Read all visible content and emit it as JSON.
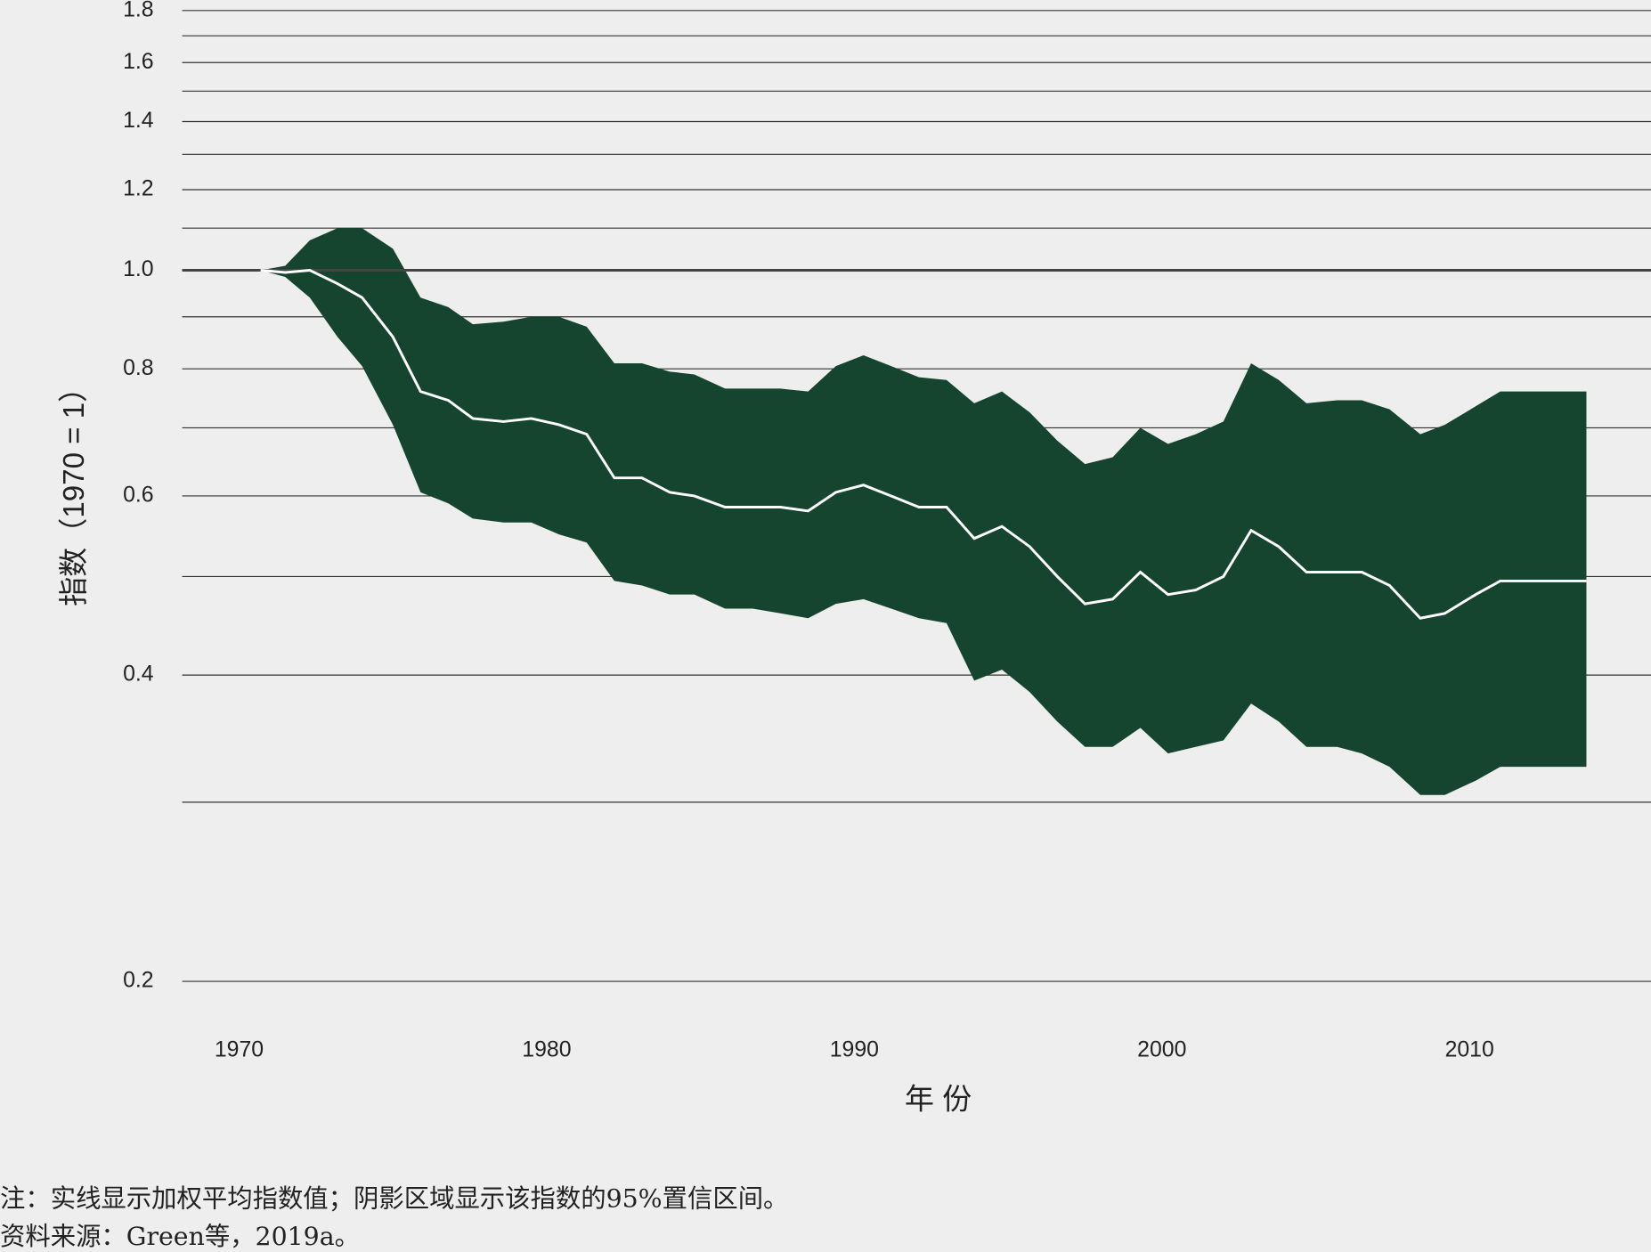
{
  "chart_data": {
    "type": "band-line",
    "y_label": "指数（1970 = 1）",
    "x_label": "年 份",
    "notes": [
      "注：实线显示加权平均指数值；阴影区域显示该指数的95%置信区间。",
      "资料来源：Green等，2019a。"
    ],
    "log_y": true,
    "ylim": [
      0.2,
      1.8
    ],
    "yticks": [
      0.2,
      0.4,
      0.6,
      0.8,
      {
        "value": 1,
        "label": "1.0"
      },
      1.2,
      1.4,
      1.6,
      1.8
    ],
    "minor_gridlines": [
      0.3,
      0.5,
      0.7,
      0.9,
      1.1,
      1.3,
      1.5,
      1.7
    ],
    "baseline": 1,
    "xlim": [
      1968.15,
      2015.9
    ],
    "xticks": [
      1970,
      1980,
      1990,
      2000,
      2010
    ],
    "x": [
      1970.7,
      1971.5,
      1972.3,
      1973.2,
      1974.0,
      1975.0,
      1975.9,
      1976.8,
      1977.6,
      1978.6,
      1979.5,
      1980.4,
      1981.3,
      1982.2,
      1983.1,
      1984.0,
      1984.8,
      1985.8,
      1986.7,
      1987.6,
      1988.5,
      1989.4,
      1990.3,
      1991.2,
      1992.1,
      1993.0,
      1993.9,
      1994.8,
      1995.7,
      1996.6,
      1997.5,
      1998.4,
      1999.3,
      2000.2,
      2001.1,
      2002.0,
      2002.9,
      2003.8,
      2004.7,
      2005.7,
      2006.5,
      2007.4,
      2008.4,
      2009.2,
      2010.2,
      2011.0,
      2013.8
    ],
    "values": [
      1.0,
      0.995,
      1.0,
      0.97,
      0.94,
      0.86,
      0.76,
      0.745,
      0.715,
      0.71,
      0.715,
      0.705,
      0.69,
      0.625,
      0.625,
      0.605,
      0.6,
      0.585,
      0.585,
      0.585,
      0.58,
      0.605,
      0.615,
      0.6,
      0.585,
      0.585,
      0.545,
      0.56,
      0.535,
      0.5,
      0.47,
      0.475,
      0.505,
      0.48,
      0.485,
      0.5,
      0.555,
      0.535,
      0.505,
      0.505,
      0.505,
      0.49,
      0.455,
      0.46,
      0.48,
      0.495,
      0.495
    ],
    "line_color": "#ffffff",
    "upper": [
      1.0,
      1.01,
      1.07,
      1.1,
      1.1,
      1.05,
      0.94,
      0.92,
      0.885,
      0.89,
      0.9,
      0.9,
      0.88,
      0.81,
      0.81,
      0.795,
      0.79,
      0.765,
      0.765,
      0.765,
      0.76,
      0.805,
      0.825,
      0.805,
      0.785,
      0.78,
      0.74,
      0.76,
      0.725,
      0.68,
      0.645,
      0.655,
      0.7,
      0.675,
      0.69,
      0.71,
      0.81,
      0.78,
      0.74,
      0.745,
      0.745,
      0.73,
      0.69,
      0.705,
      0.735,
      0.76,
      0.76
    ],
    "lower": [
      1.0,
      0.985,
      0.94,
      0.86,
      0.805,
      0.705,
      0.605,
      0.59,
      0.57,
      0.565,
      0.565,
      0.55,
      0.54,
      0.495,
      0.49,
      0.48,
      0.48,
      0.465,
      0.465,
      0.46,
      0.455,
      0.47,
      0.475,
      0.465,
      0.455,
      0.45,
      0.395,
      0.405,
      0.385,
      0.36,
      0.34,
      0.34,
      0.355,
      0.335,
      0.34,
      0.345,
      0.375,
      0.36,
      0.34,
      0.34,
      0.335,
      0.325,
      0.305,
      0.305,
      0.315,
      0.325,
      0.325
    ],
    "band_color": "#15452f",
    "grid": true
  }
}
